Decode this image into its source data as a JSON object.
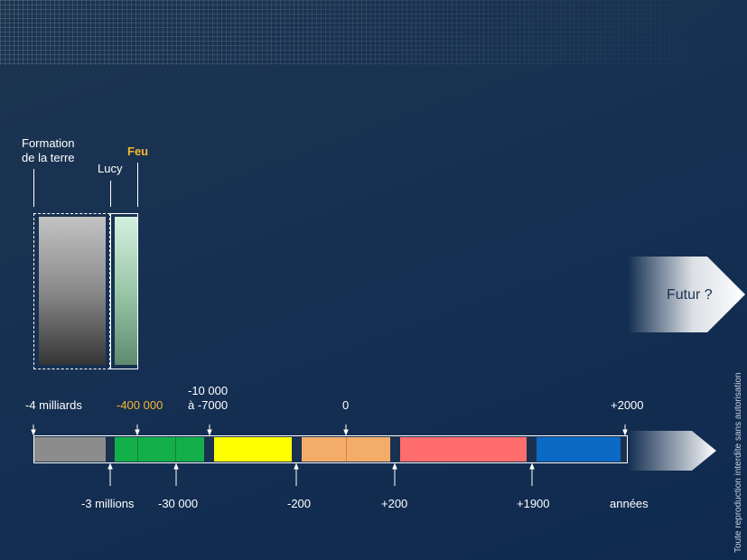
{
  "top_labels": {
    "formation": [
      "Formation",
      "de la terre"
    ],
    "lucy": "Lucy",
    "feu": "Feu"
  },
  "upper_ticks": {
    "milliards": "-4 milliards",
    "mille400": "-400 000",
    "neolithic": [
      "-10 000",
      "à -7000"
    ],
    "zero": "0",
    "plus2000": "+2000"
  },
  "lower_ticks": {
    "millions": "-3 millions",
    "mille30": "-30 000",
    "minus200": "-200",
    "plus200": "+200",
    "plus1900": "+1900",
    "annees": "années"
  },
  "futur": "Futur ?",
  "copyright": "Toute reproduction interdite sans autorisation",
  "colors": {
    "gray": "#8c8c8c",
    "green": "#13b04a",
    "yellow": "#ffff00",
    "orange": "#f3ad68",
    "red": "#ff6d6d",
    "blue": "#0a6ac6",
    "highlight": "#f5b731"
  }
}
